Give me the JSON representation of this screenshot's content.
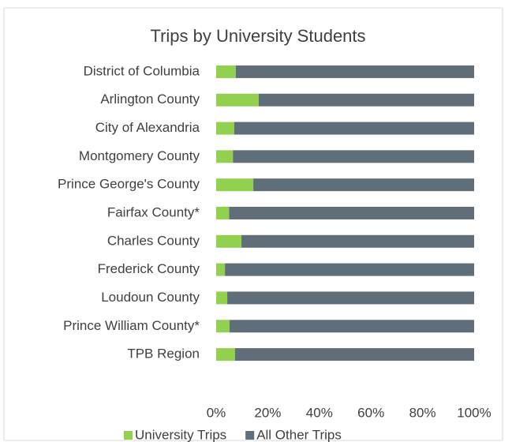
{
  "chart_data": {
    "type": "stacked_bar_horizontal",
    "title": "Trips by University Students",
    "categories": [
      "District of Columbia",
      "Arlington County",
      "City of Alexandria",
      "Montgomery County",
      "Prince George's County",
      "Fairfax County*",
      "Charles County",
      "Frederick County",
      "Loudoun County",
      "Prince William County*",
      "TPB Region"
    ],
    "series": [
      {
        "name": "University Trips",
        "color": "#92d050",
        "values": [
          7.6,
          16.5,
          7,
          6.5,
          14.4,
          5,
          9.8,
          3.4,
          4.3,
          5.2,
          7.3
        ]
      },
      {
        "name": "All Other Trips",
        "color": "#5f6e78",
        "values": [
          92.4,
          83.5,
          93,
          93.5,
          85.6,
          95,
          90.2,
          96.6,
          95.7,
          94.8,
          92.7
        ]
      }
    ],
    "xlim": [
      0,
      100
    ],
    "xticks": [
      {
        "value": 0,
        "label": "0%"
      },
      {
        "value": 20,
        "label": "20%"
      },
      {
        "value": 40,
        "label": "40%"
      },
      {
        "value": 60,
        "label": "60%"
      },
      {
        "value": 80,
        "label": "80%"
      },
      {
        "value": 100,
        "label": "100%"
      }
    ],
    "legend": "bottom"
  }
}
